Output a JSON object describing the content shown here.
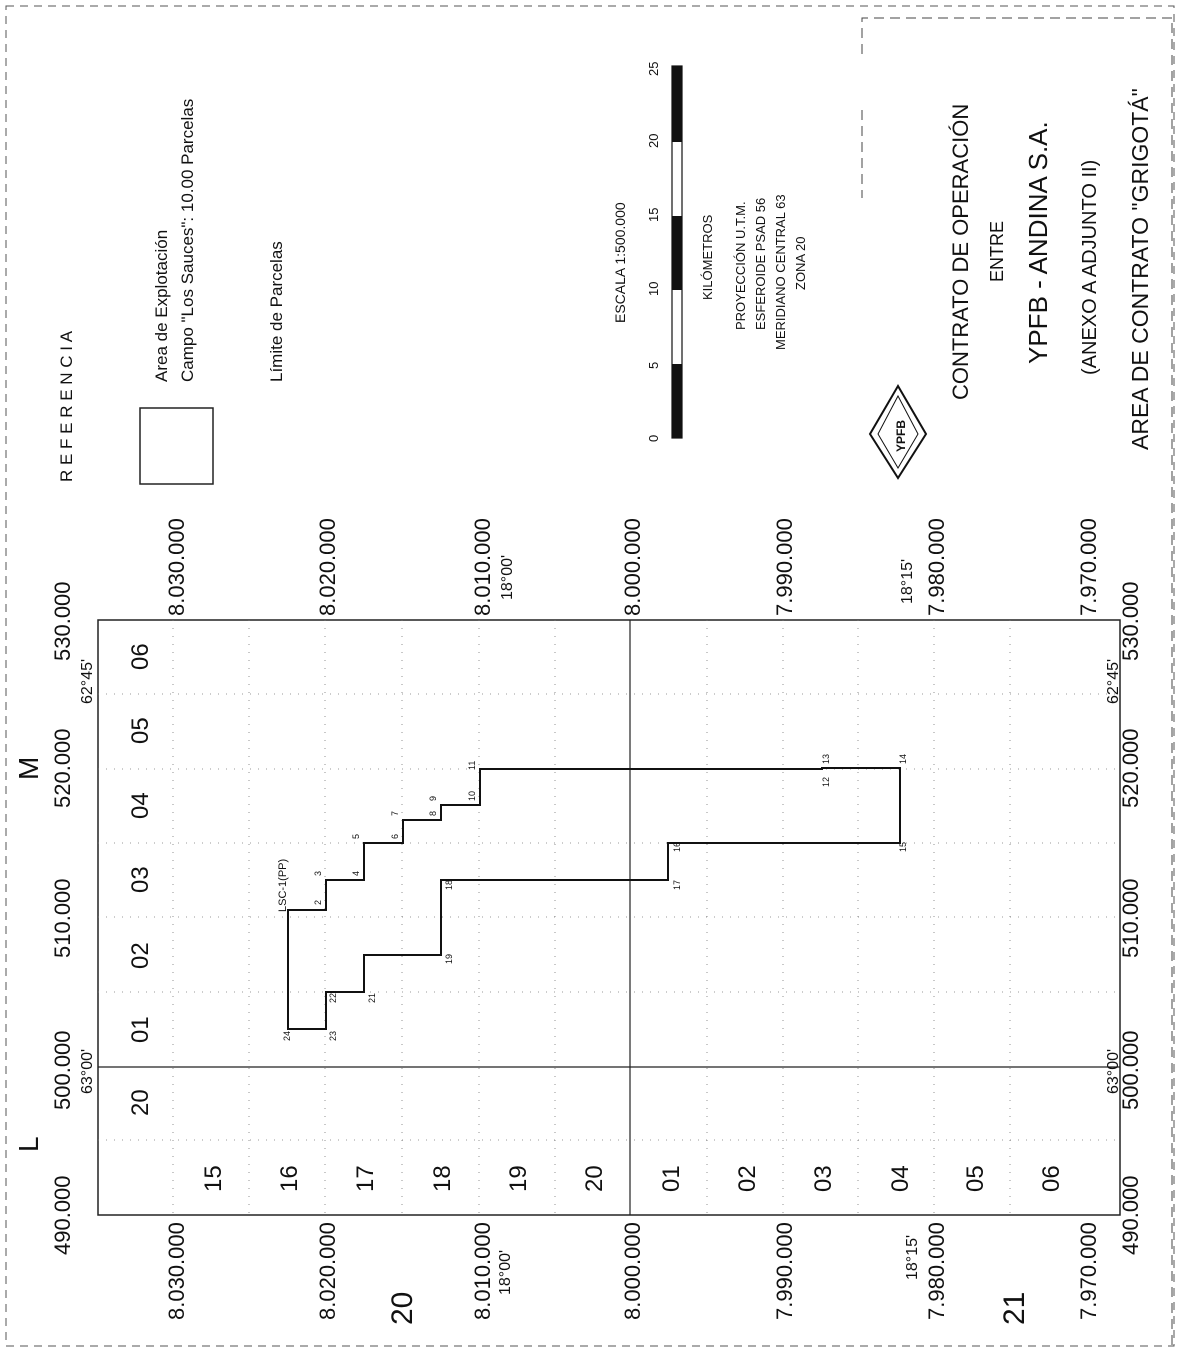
{
  "top_labels": {
    "left_block": "L",
    "right_block": "M",
    "bottom_left_zone": "21",
    "mid_left_zone": "20"
  },
  "x_axis_top": [
    "490.000",
    "500.000",
    "510.000",
    "520.000",
    "530.000"
  ],
  "x_axis_bottom": [
    "490.000",
    "500.000",
    "510.000",
    "520.000",
    "530.000"
  ],
  "y_axis_left": [
    "8.030.000",
    "8.020.000",
    "8.010.000",
    "8.000.000",
    "7.990.000",
    "7.980.000",
    "7.970.000"
  ],
  "y_axis_right": [
    "8.030.000",
    "8.020.000",
    "8.010.000",
    "8.000.000",
    "7.990.000",
    "7.980.000",
    "7.970.000"
  ],
  "degrees": {
    "lon_west": "63°00'",
    "lon_east": "62°45'",
    "lat_north": "18°00'",
    "lat_south": "18°15'"
  },
  "grid_rows_left": [
    "15",
    "16",
    "17",
    "18",
    "19",
    "20",
    "01",
    "02",
    "03",
    "04",
    "05",
    "06"
  ],
  "grid_cols": [
    "20",
    "01",
    "02",
    "03",
    "04",
    "05",
    "06"
  ],
  "polygon_labels": [
    "2",
    "3",
    "4",
    "5",
    "6",
    "7",
    "8",
    "9",
    "10",
    "11",
    "12",
    "13",
    "14",
    "15",
    "16",
    "17",
    "18",
    "19",
    "21",
    "22",
    "23",
    "24"
  ],
  "well_label": "LSC-1(PP)",
  "legend": {
    "title": "R E F E R E N C I A",
    "area_line1": "Area de Explotación",
    "area_line2": "Campo \"Los Sauces\":  10.00 Parcelas",
    "limit": "Límite de Parcelas"
  },
  "scale": {
    "title": "ESCALA 1:500.000",
    "ticks": [
      "0",
      "5",
      "10",
      "15",
      "20",
      "25"
    ],
    "unit": "KILÓMETROS",
    "proj1": "PROYECCIÓN U.T.M.",
    "proj2": "ESFEROIDE PSAD 56",
    "proj3": "MERIDIANO CENTRAL 63",
    "proj4": "ZONA 20"
  },
  "logo_text": "YPFB",
  "titleblock": {
    "line1": "CONTRATO DE OPERACIÓN",
    "line2": "ENTRE",
    "line3": "YPFB - ANDINA S.A.",
    "line4": "(ANEXO A  ADJUNTO II)",
    "line5": "AREA DE CONTRATO \"GRIGOTÁ\""
  }
}
